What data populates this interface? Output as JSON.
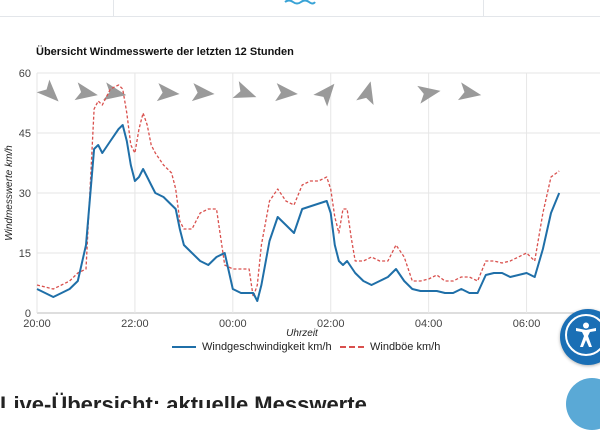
{
  "colors": {
    "speed": "#1f6fa8",
    "gust": "#d9504d",
    "grid": "#e6e6e6",
    "accent": "#1a6fb5"
  },
  "header": {
    "logo_icon": "wave-icon"
  },
  "chart_data": {
    "type": "line",
    "title": "Übersicht Windmesswerte der letzten 12 Stunden",
    "xlabel": "Uhrzeit",
    "ylabel": "Windmesswerte km/h",
    "xlim": [
      0,
      690
    ],
    "ylim": [
      0,
      60
    ],
    "yticks": [
      0,
      15,
      30,
      45,
      60
    ],
    "xticks": [
      {
        "minute": 0,
        "label": "20:00"
      },
      {
        "minute": 120,
        "label": "22:00"
      },
      {
        "minute": 240,
        "label": "00:00"
      },
      {
        "minute": 360,
        "label": "02:00"
      },
      {
        "minute": 480,
        "label": "04:00"
      },
      {
        "minute": 600,
        "label": "06:00"
      }
    ],
    "grid": true,
    "legend_position": "bottom",
    "series": [
      {
        "name": "Windgeschwindigkeit km/h",
        "style": "solid",
        "points": [
          [
            0,
            6
          ],
          [
            10,
            5
          ],
          [
            20,
            4
          ],
          [
            30,
            5
          ],
          [
            40,
            6
          ],
          [
            50,
            8
          ],
          [
            60,
            17
          ],
          [
            70,
            41
          ],
          [
            75,
            42
          ],
          [
            80,
            40
          ],
          [
            90,
            43
          ],
          [
            100,
            46
          ],
          [
            105,
            47
          ],
          [
            110,
            43
          ],
          [
            115,
            37
          ],
          [
            120,
            33
          ],
          [
            125,
            34
          ],
          [
            130,
            36
          ],
          [
            135,
            34
          ],
          [
            140,
            32
          ],
          [
            145,
            30
          ],
          [
            155,
            29
          ],
          [
            165,
            27
          ],
          [
            170,
            26
          ],
          [
            175,
            21
          ],
          [
            180,
            17
          ],
          [
            190,
            15
          ],
          [
            200,
            13
          ],
          [
            210,
            12
          ],
          [
            220,
            14
          ],
          [
            230,
            15
          ],
          [
            240,
            6
          ],
          [
            250,
            5
          ],
          [
            255,
            5
          ],
          [
            265,
            5
          ],
          [
            270,
            3
          ],
          [
            275,
            7
          ],
          [
            285,
            18
          ],
          [
            295,
            24
          ],
          [
            305,
            22
          ],
          [
            315,
            20
          ],
          [
            325,
            26
          ],
          [
            340,
            27
          ],
          [
            355,
            28
          ],
          [
            360,
            25
          ],
          [
            365,
            17
          ],
          [
            370,
            13
          ],
          [
            375,
            12
          ],
          [
            380,
            13
          ],
          [
            390,
            10
          ],
          [
            400,
            8
          ],
          [
            410,
            7
          ],
          [
            420,
            8
          ],
          [
            430,
            9
          ],
          [
            440,
            11
          ],
          [
            450,
            8
          ],
          [
            460,
            6
          ],
          [
            470,
            5.5
          ],
          [
            480,
            5.5
          ],
          [
            490,
            5.5
          ],
          [
            500,
            5
          ],
          [
            510,
            5
          ],
          [
            520,
            6
          ],
          [
            530,
            5
          ],
          [
            540,
            5
          ],
          [
            550,
            9.5
          ],
          [
            560,
            10
          ],
          [
            570,
            10
          ],
          [
            580,
            9
          ],
          [
            590,
            9.5
          ],
          [
            600,
            10
          ],
          [
            610,
            9
          ],
          [
            620,
            16
          ],
          [
            630,
            25
          ],
          [
            640,
            30
          ]
        ]
      },
      {
        "name": "Windböe km/h",
        "style": "dashed",
        "points": [
          [
            0,
            7
          ],
          [
            10,
            6.5
          ],
          [
            20,
            6
          ],
          [
            30,
            7
          ],
          [
            40,
            8
          ],
          [
            50,
            10
          ],
          [
            60,
            11
          ],
          [
            70,
            51
          ],
          [
            75,
            53
          ],
          [
            80,
            52
          ],
          [
            90,
            56
          ],
          [
            100,
            57
          ],
          [
            105,
            56
          ],
          [
            110,
            50
          ],
          [
            115,
            42
          ],
          [
            120,
            40
          ],
          [
            125,
            46
          ],
          [
            130,
            50
          ],
          [
            135,
            47
          ],
          [
            140,
            42
          ],
          [
            145,
            40
          ],
          [
            155,
            37
          ],
          [
            165,
            35
          ],
          [
            170,
            31
          ],
          [
            175,
            23
          ],
          [
            180,
            21
          ],
          [
            190,
            21
          ],
          [
            200,
            25
          ],
          [
            210,
            26
          ],
          [
            220,
            26
          ],
          [
            230,
            12
          ],
          [
            240,
            11
          ],
          [
            250,
            11
          ],
          [
            260,
            11
          ],
          [
            265,
            4
          ],
          [
            270,
            7
          ],
          [
            275,
            17
          ],
          [
            285,
            28
          ],
          [
            295,
            31
          ],
          [
            305,
            28
          ],
          [
            315,
            27
          ],
          [
            325,
            32
          ],
          [
            335,
            33
          ],
          [
            345,
            33
          ],
          [
            355,
            34
          ],
          [
            360,
            31
          ],
          [
            365,
            24
          ],
          [
            370,
            20
          ],
          [
            375,
            26
          ],
          [
            380,
            26
          ],
          [
            385,
            19
          ],
          [
            390,
            13
          ],
          [
            400,
            13
          ],
          [
            410,
            14
          ],
          [
            420,
            13
          ],
          [
            430,
            13
          ],
          [
            440,
            17
          ],
          [
            450,
            14
          ],
          [
            460,
            8
          ],
          [
            470,
            8
          ],
          [
            480,
            8.5
          ],
          [
            490,
            9.5
          ],
          [
            500,
            8
          ],
          [
            510,
            8
          ],
          [
            520,
            9
          ],
          [
            530,
            9
          ],
          [
            540,
            8
          ],
          [
            550,
            13
          ],
          [
            560,
            13
          ],
          [
            570,
            12.5
          ],
          [
            580,
            13
          ],
          [
            590,
            14
          ],
          [
            600,
            15
          ],
          [
            610,
            13
          ],
          [
            620,
            25
          ],
          [
            630,
            34
          ],
          [
            640,
            35.5
          ]
        ]
      }
    ],
    "direction_arrows": [
      {
        "minute": 16,
        "bearing": 135
      },
      {
        "minute": 60,
        "bearing": 100
      },
      {
        "minute": 95,
        "bearing": 100
      },
      {
        "minute": 160,
        "bearing": 95
      },
      {
        "minute": 203,
        "bearing": 95
      },
      {
        "minute": 255,
        "bearing": 110
      },
      {
        "minute": 305,
        "bearing": 95
      },
      {
        "minute": 355,
        "bearing": 40
      },
      {
        "minute": 405,
        "bearing": 15
      },
      {
        "minute": 480,
        "bearing": 80
      },
      {
        "minute": 530,
        "bearing": 100
      }
    ]
  },
  "bottom": {
    "heading_partial": "Live-Übersicht: aktuelle Messwerte"
  }
}
